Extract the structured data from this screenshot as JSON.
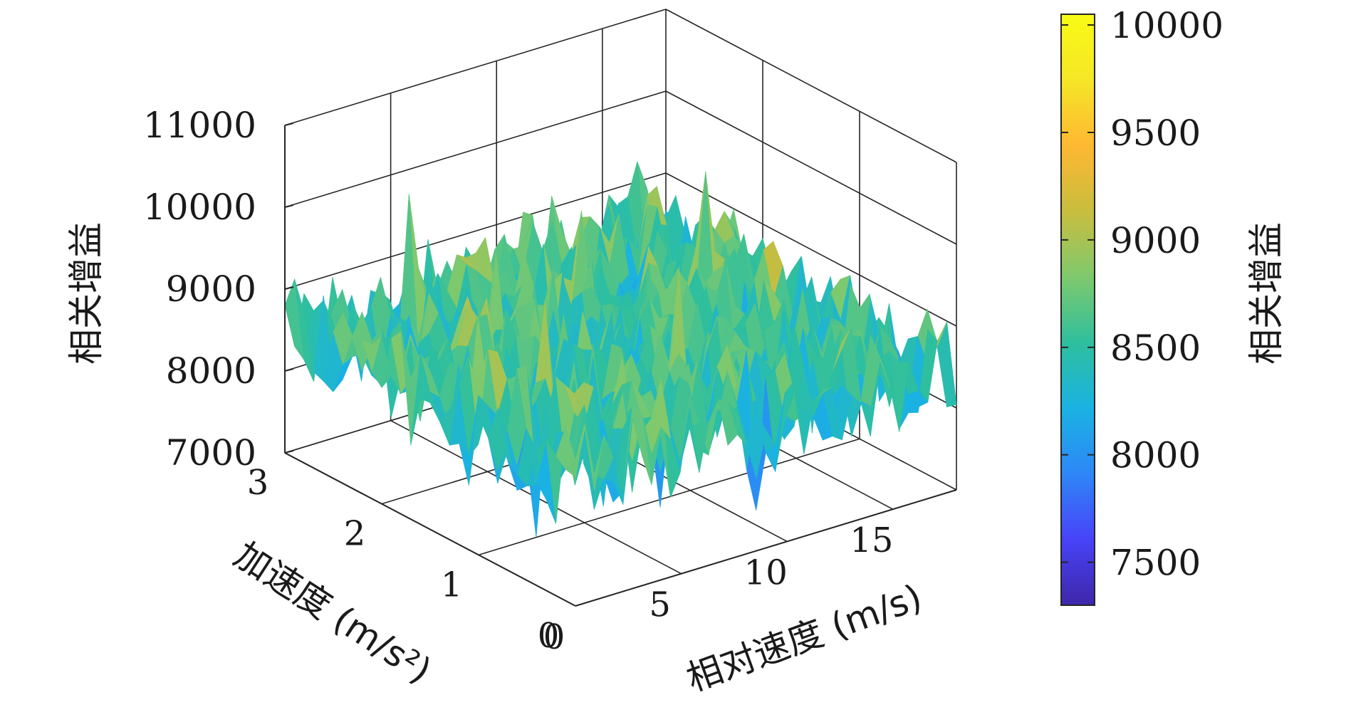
{
  "chart_data": {
    "type": "surface",
    "xlabel": "相对速度 (m/s)",
    "ylabel": "加速度 (m/s²)",
    "zlabel": "相关增益",
    "xlim": [
      0,
      18
    ],
    "ylim": [
      0,
      3
    ],
    "zlim": [
      7000,
      11000
    ],
    "x_ticks": [
      "0",
      "5",
      "10",
      "15"
    ],
    "y_ticks": [
      "0",
      "1",
      "2",
      "3"
    ],
    "z_ticks": [
      "7000",
      "8000",
      "9000",
      "10000",
      "11000"
    ],
    "grid": true,
    "grid_x": [
      0,
      18
    ],
    "grid_y": [
      0,
      3
    ],
    "z_surface_range": [
      7300,
      10050
    ],
    "z_mean": 8500,
    "colorbar": {
      "label": "相关增益",
      "ticks": [
        "7500",
        "8000",
        "8500",
        "9000",
        "9500",
        "10000"
      ],
      "range": [
        7300,
        10050
      ],
      "colormap": [
        "#3e26a8",
        "#4743f8",
        "#2e87f7",
        "#1ab2e3",
        "#2ebf9e",
        "#7fc96d",
        "#c9bd3e",
        "#feb832",
        "#f5e626",
        "#f9fb15"
      ]
    }
  }
}
